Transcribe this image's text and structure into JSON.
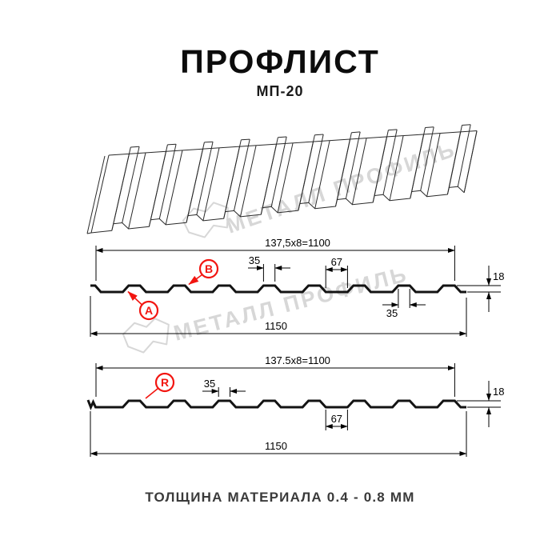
{
  "title": "ПРОФЛИСТ",
  "subtitle": "МП-20",
  "footer": "ТОЛЩИНА МАТЕРИАЛА 0.4 - 0.8 ММ",
  "watermark": {
    "text": "МЕТАЛЛ ПРОФИЛЬ",
    "color": "#d7d7d7"
  },
  "colors": {
    "accent_red": "#f21510",
    "line_black": "#131313"
  },
  "profile_geometry": {
    "period_mm": 137.5,
    "periods_per_sheet": 8,
    "rib_top_mm": 35,
    "valley_mm": 67,
    "height_mm": 18,
    "cover_width_mm": 1100,
    "overall_width_mm": 1150,
    "thickness_range_mm": "0.4 - 0.8"
  },
  "profile_a": {
    "dim_span": "137,5x8=1100",
    "dim_rib_top": "35",
    "dim_valley": "67",
    "dim_height": "18",
    "dim_rib_bottom": "35",
    "dim_width": "1150",
    "label_a": "A",
    "label_b": "B"
  },
  "profile_r": {
    "dim_span": "137.5x8=1100",
    "dim_rib_top": "35",
    "dim_valley": "67",
    "dim_height": "18",
    "dim_width": "1150",
    "label_r": "R"
  }
}
